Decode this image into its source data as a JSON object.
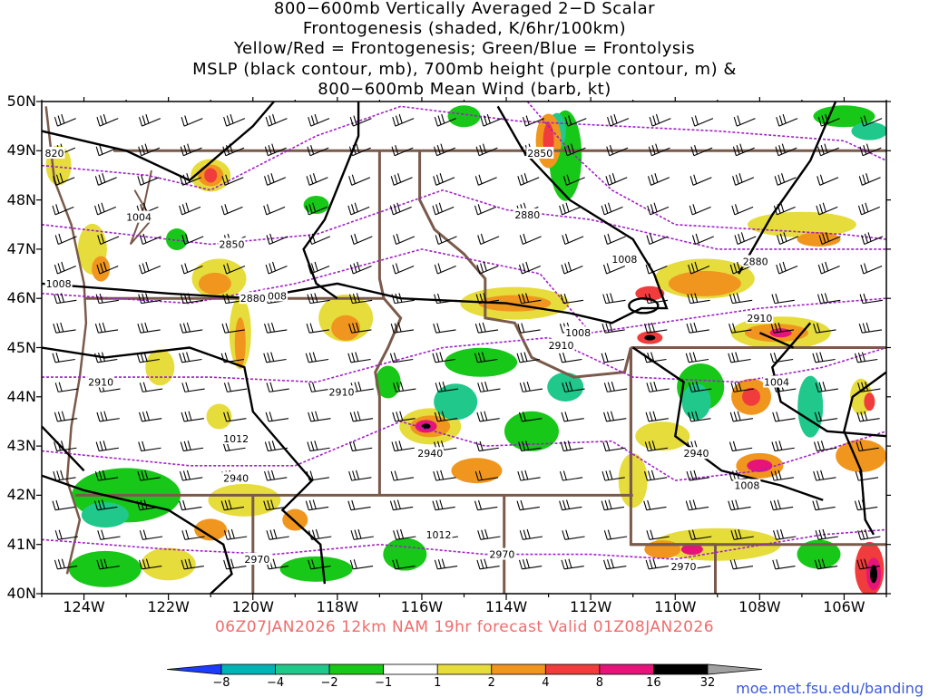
{
  "title_lines": [
    "800−600mb Vertically Averaged 2−D Scalar",
    "Frontogenesis (shaded, K/6hr/100km)",
    "Yellow/Red = Frontogenesis;  Green/Blue = Frontolysis",
    "MSLP (black contour, mb), 700mb height (purple contour, m) &",
    "800−600mb Mean Wind (barb, kt)"
  ],
  "lat_labels": [
    "50N",
    "49N",
    "48N",
    "47N",
    "46N",
    "45N",
    "44N",
    "43N",
    "42N",
    "41N",
    "40N"
  ],
  "lon_labels": [
    "124W",
    "122W",
    "120W",
    "118W",
    "116W",
    "114W",
    "112W",
    "110W",
    "108W",
    "106W"
  ],
  "valid_line": "06Z07JAN2026 12km NAM 19hr forecast Valid 01Z08JAN2026",
  "colorbar": {
    "labels": [
      "−8",
      "−4",
      "−2",
      "−1",
      "1",
      "2",
      "4",
      "8",
      "16",
      "32"
    ],
    "colors": [
      "#1e3cff",
      "#00b4b4",
      "#20c88c",
      "#18c818",
      "#ffffff",
      "#e6dc3c",
      "#f0961e",
      "#f03c3c",
      "#e6147a",
      "#000000",
      "#a0a0a0"
    ]
  },
  "contour_labels": {
    "mslp": [
      {
        "text": "1008",
        "lat": 46.8,
        "lon": -111.2
      },
      {
        "text": "1008",
        "lat": 45.3,
        "lon": -112.3
      },
      {
        "text": "1008",
        "lat": 46.05,
        "lon": -119.5
      },
      {
        "text": "1008",
        "lat": 46.3,
        "lon": -124.6
      },
      {
        "text": "1004",
        "lat": 44.3,
        "lon": -107.6
      },
      {
        "text": "1008",
        "lat": 42.2,
        "lon": -108.3
      },
      {
        "text": "1012",
        "lat": 43.15,
        "lon": -120.4
      },
      {
        "text": "1012",
        "lat": 41.2,
        "lon": -115.6
      },
      {
        "text": "1004",
        "lat": 47.65,
        "lon": -122.7
      },
      {
        "text": "820",
        "lat": 48.95,
        "lon": -124.7
      }
    ],
    "height": [
      {
        "text": "2850",
        "lat": 48.95,
        "lon": -113.2
      },
      {
        "text": "2880",
        "lat": 47.7,
        "lon": -113.5
      },
      {
        "text": "2850",
        "lat": 47.1,
        "lon": -120.5
      },
      {
        "text": "2880",
        "lat": 46.75,
        "lon": -108.1
      },
      {
        "text": "2880",
        "lat": 46.0,
        "lon": -120.0
      },
      {
        "text": "2910",
        "lat": 45.6,
        "lon": -108.0
      },
      {
        "text": "2910",
        "lat": 45.05,
        "lon": -112.7
      },
      {
        "text": "2910",
        "lat": 44.3,
        "lon": -123.6
      },
      {
        "text": "2910",
        "lat": 44.1,
        "lon": -117.9
      },
      {
        "text": "2940",
        "lat": 42.85,
        "lon": -115.8
      },
      {
        "text": "2940",
        "lat": 42.85,
        "lon": -109.5
      },
      {
        "text": "2940",
        "lat": 42.35,
        "lon": -120.4
      },
      {
        "text": "2970",
        "lat": 40.8,
        "lon": -114.1
      },
      {
        "text": "2970",
        "lat": 40.7,
        "lon": -119.9
      },
      {
        "text": "2970",
        "lat": 40.55,
        "lon": -109.8
      }
    ]
  },
  "credit": "moe.met.fsu.edu/banding"
}
